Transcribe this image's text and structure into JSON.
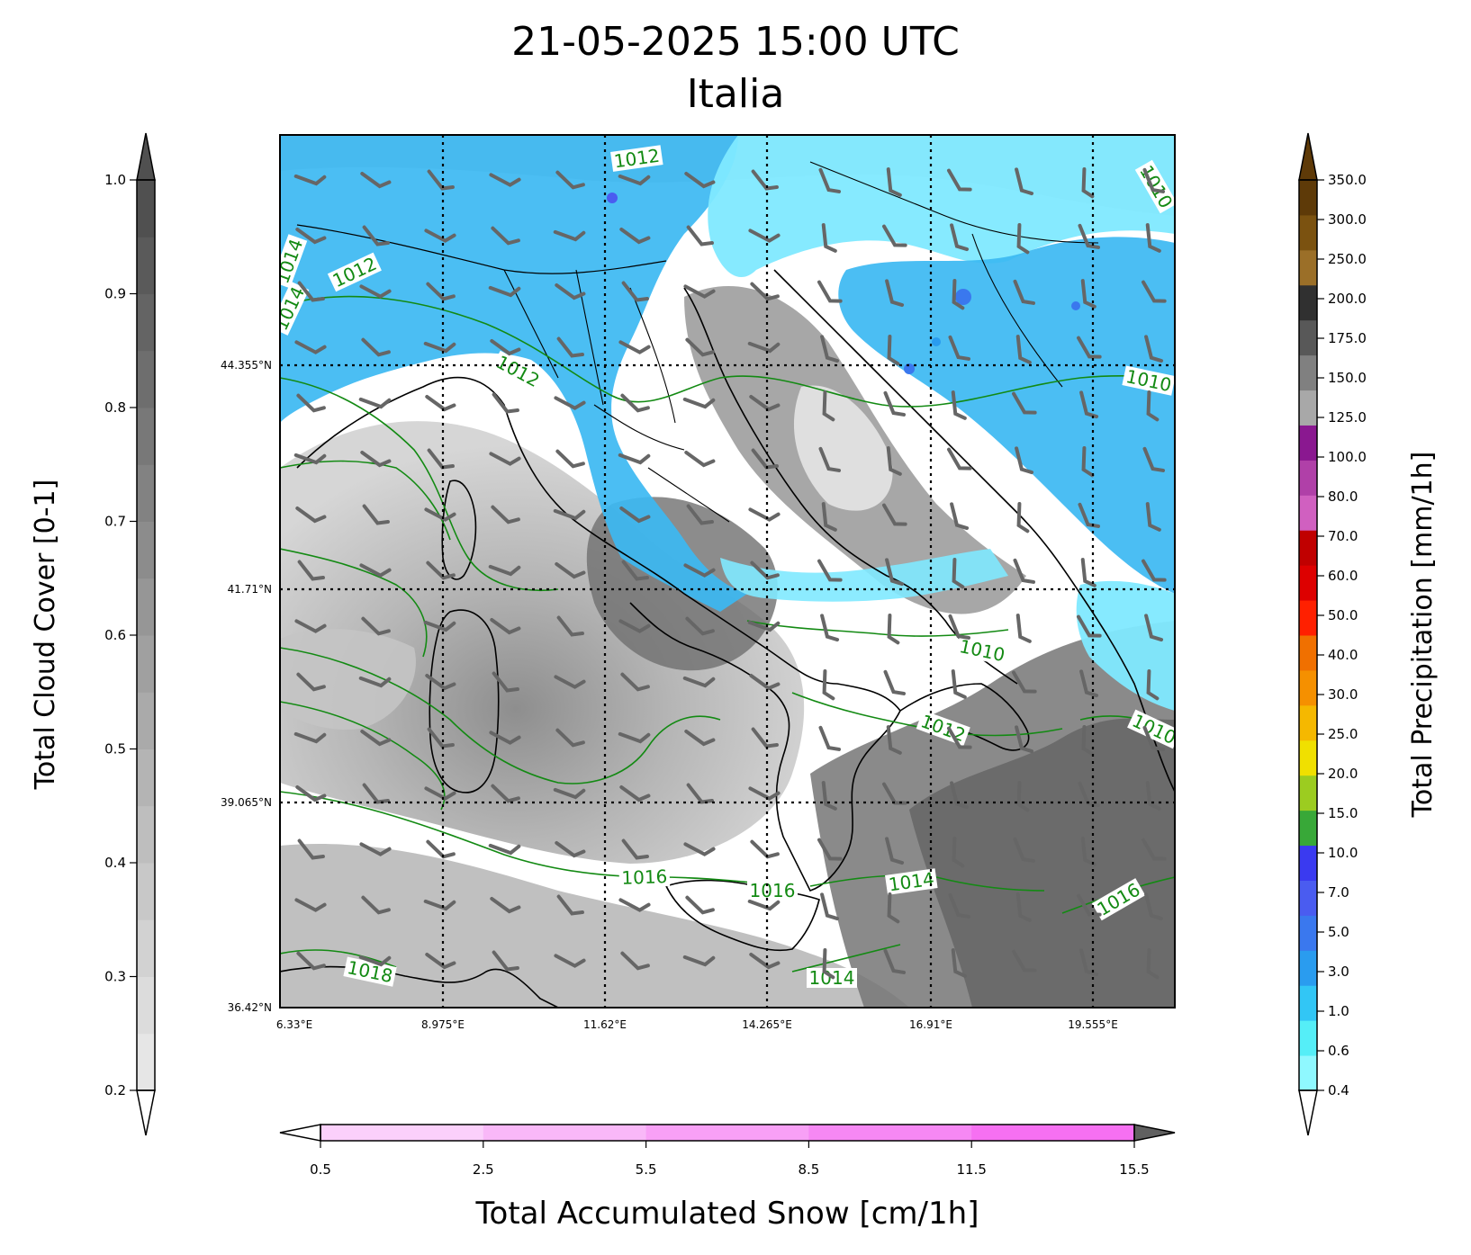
{
  "header": {
    "title": "21-05-2025 15:00 UTC",
    "subtitle": "Italia"
  },
  "map": {
    "latitude_labels": [
      "44.355°N",
      "41.71°N",
      "39.065°N",
      "36.42°N"
    ],
    "longitude_labels": [
      "6.33°E",
      "8.975°E",
      "11.62°E",
      "14.265°E",
      "16.91°E",
      "19.555°E"
    ],
    "isobar_labels": [
      "1012",
      "1012",
      "1012",
      "1014",
      "1010",
      "1010",
      "1012",
      "1016",
      "1016",
      "1014",
      "1016",
      "1018",
      "1014",
      "1010",
      "1010",
      "1014"
    ],
    "colors": {
      "precip_light": "#7fe9ff",
      "precip_mid": "#3cb8f2",
      "isobar": "#138a13",
      "coast": "#000000",
      "cloud_dark": "#6f6f6f",
      "cloud_light": "#d2d2d2",
      "wind_barb": "#666666"
    }
  },
  "colorbars": {
    "cloud": {
      "label": "Total Cloud Cover [0-1]",
      "ticks": [
        "0.2",
        "0.3",
        "0.4",
        "0.5",
        "0.6",
        "0.7",
        "0.8",
        "0.9",
        "1.0"
      ],
      "colors": [
        "#e6e6e6",
        "#dcdcdc",
        "#d2d2d2",
        "#c8c8c8",
        "#bebebe",
        "#b4b4b4",
        "#aaaaaa",
        "#a0a0a0",
        "#969696",
        "#8c8c8c",
        "#828282",
        "#787878",
        "#6e6e6e",
        "#646464",
        "#5a5a5a",
        "#505050"
      ]
    },
    "precip": {
      "label": "Total Precipitation [mm/1h]",
      "ticks": [
        "0.4",
        "0.6",
        "1.0",
        "3.0",
        "5.0",
        "7.0",
        "10.0",
        "15.0",
        "20.0",
        "25.0",
        "30.0",
        "40.0",
        "50.0",
        "60.0",
        "70.0",
        "80.0",
        "100.0",
        "125.0",
        "150.0",
        "175.0",
        "200.0",
        "250.0",
        "300.0",
        "350.0"
      ],
      "colors": [
        "#8ff8ff",
        "#55eef7",
        "#32c6f5",
        "#2a9cef",
        "#3a78ee",
        "#4a5cf0",
        "#3a3af0",
        "#38a838",
        "#9ccc20",
        "#f0e000",
        "#f5b800",
        "#f59000",
        "#f07000",
        "#ff2000",
        "#dd0000",
        "#c00000",
        "#d060c0",
        "#b040a8",
        "#8a1890",
        "#a8a8a8",
        "#808080",
        "#585858",
        "#303030",
        "#9b6f28",
        "#7b5210",
        "#5e3a08"
      ]
    },
    "snow": {
      "label": "Total Accumulated Snow [cm/1h]",
      "ticks": [
        "0.5",
        "2.5",
        "5.5",
        "8.5",
        "11.5",
        "15.5"
      ],
      "colors": [
        "#fbd0fb",
        "#f9b8f8",
        "#f8a0f6",
        "#f688f4",
        "#f670f2",
        "#606060"
      ]
    }
  }
}
